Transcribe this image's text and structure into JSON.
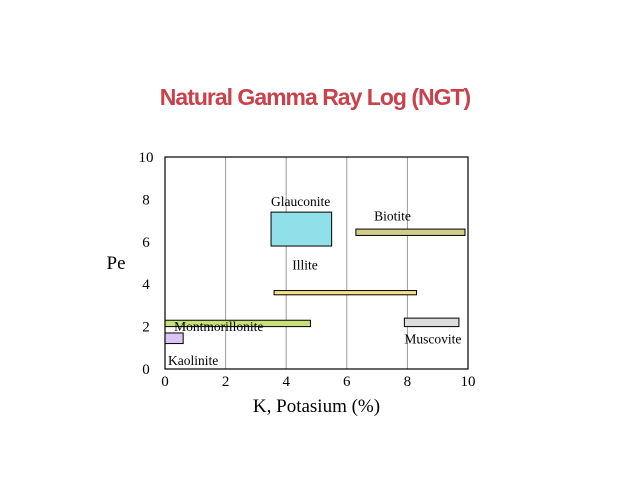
{
  "slide": {
    "title": "Natural Gamma Ray Log (NGT)"
  },
  "chart_data": {
    "type": "bar",
    "subtype": "range-boxes",
    "title": "Natural Gamma Ray Log (NGT)",
    "xlabel": "K, Potasium (%)",
    "ylabel": "Pe",
    "xlim": [
      0,
      10
    ],
    "ylim": [
      0,
      10
    ],
    "xticks": [
      0,
      2,
      4,
      6,
      8,
      10
    ],
    "yticks": [
      0,
      2,
      4,
      6,
      8,
      10
    ],
    "grid": true,
    "series": [
      {
        "name": "Kaolinite",
        "x": [
          0,
          0.6
        ],
        "y": [
          1.2,
          1.7
        ],
        "color": "#d9c6f2",
        "label_at": [
          0.1,
          0.2
        ]
      },
      {
        "name": "Montmorillonite",
        "x": [
          0,
          4.8
        ],
        "y": [
          2.0,
          2.3
        ],
        "color": "#c8e07a",
        "label_at": [
          0.3,
          1.8
        ]
      },
      {
        "name": "Illite",
        "x": [
          3.6,
          8.3
        ],
        "y": [
          3.5,
          3.7
        ],
        "color": "#f5e08a",
        "label_at": [
          4.2,
          4.7
        ]
      },
      {
        "name": "Glauconite",
        "x": [
          3.5,
          5.5
        ],
        "y": [
          5.8,
          7.4
        ],
        "color": "#8fe0e8",
        "label_at": [
          3.5,
          7.7
        ]
      },
      {
        "name": "Biotite",
        "x": [
          6.3,
          9.9
        ],
        "y": [
          6.3,
          6.6
        ],
        "color": "#d0cd8a",
        "label_at": [
          6.9,
          7.0
        ]
      },
      {
        "name": "Muscovite",
        "x": [
          7.9,
          9.7
        ],
        "y": [
          2.0,
          2.4
        ],
        "color": "#dddddd",
        "label_at": [
          7.9,
          1.2
        ]
      }
    ]
  }
}
